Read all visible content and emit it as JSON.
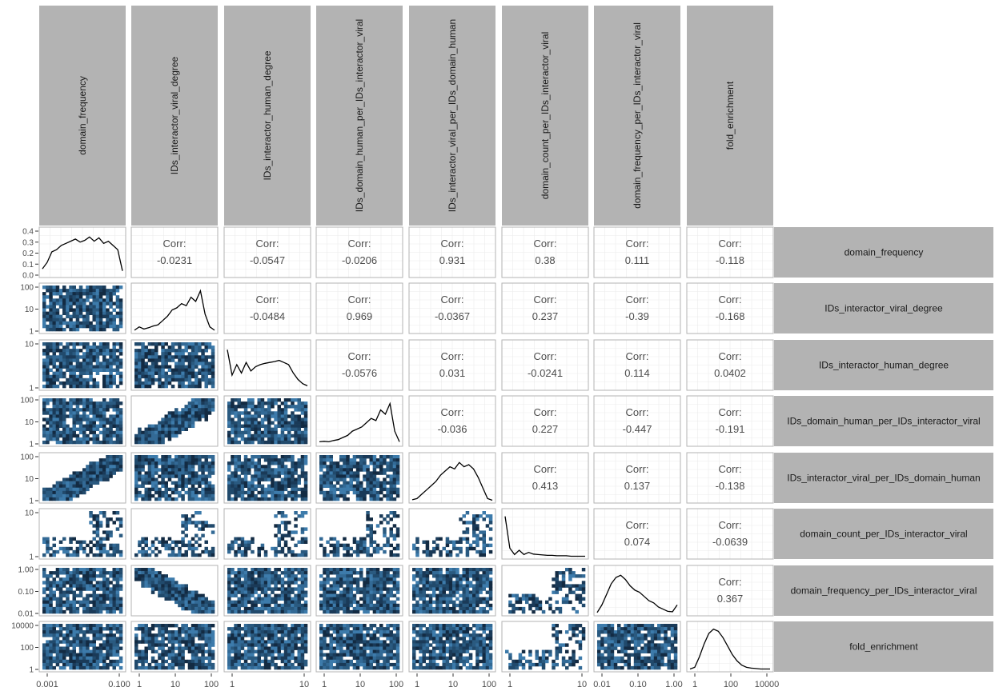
{
  "chart_data": {
    "type": "pairs-matrix",
    "variables": [
      "domain_frequency",
      "IDs_interactor_viral_degree",
      "IDs_interactor_human_degree",
      "IDs_domain_human_per_IDs_interactor_viral",
      "IDs_interactor_viral_per_IDs_domain_human",
      "domain_count_per_IDs_interactor_viral",
      "domain_frequency_per_IDs_interactor_viral",
      "fold_enrichment"
    ],
    "corr_label": "Corr:",
    "correlations": [
      {
        "row": 0,
        "col": 1,
        "value": "-0.0231"
      },
      {
        "row": 0,
        "col": 2,
        "value": "-0.0547"
      },
      {
        "row": 0,
        "col": 3,
        "value": "-0.0206"
      },
      {
        "row": 0,
        "col": 4,
        "value": "0.931"
      },
      {
        "row": 0,
        "col": 5,
        "value": "0.38"
      },
      {
        "row": 0,
        "col": 6,
        "value": "0.111"
      },
      {
        "row": 0,
        "col": 7,
        "value": "-0.118"
      },
      {
        "row": 1,
        "col": 2,
        "value": "-0.0484"
      },
      {
        "row": 1,
        "col": 3,
        "value": "0.969"
      },
      {
        "row": 1,
        "col": 4,
        "value": "-0.0367"
      },
      {
        "row": 1,
        "col": 5,
        "value": "0.237"
      },
      {
        "row": 1,
        "col": 6,
        "value": "-0.39"
      },
      {
        "row": 1,
        "col": 7,
        "value": "-0.168"
      },
      {
        "row": 2,
        "col": 3,
        "value": "-0.0576"
      },
      {
        "row": 2,
        "col": 4,
        "value": "0.031"
      },
      {
        "row": 2,
        "col": 5,
        "value": "-0.0241"
      },
      {
        "row": 2,
        "col": 6,
        "value": "0.114"
      },
      {
        "row": 2,
        "col": 7,
        "value": "0.0402"
      },
      {
        "row": 3,
        "col": 4,
        "value": "-0.036"
      },
      {
        "row": 3,
        "col": 5,
        "value": "0.227"
      },
      {
        "row": 3,
        "col": 6,
        "value": "-0.447"
      },
      {
        "row": 3,
        "col": 7,
        "value": "-0.191"
      },
      {
        "row": 4,
        "col": 5,
        "value": "0.413"
      },
      {
        "row": 4,
        "col": 6,
        "value": "0.137"
      },
      {
        "row": 4,
        "col": 7,
        "value": "-0.138"
      },
      {
        "row": 5,
        "col": 6,
        "value": "0.074"
      },
      {
        "row": 5,
        "col": 7,
        "value": "-0.0639"
      },
      {
        "row": 6,
        "col": 7,
        "value": "0.367"
      }
    ],
    "row_tick_labels": [
      [
        "0.4",
        "0.3",
        "0.2",
        "0.1",
        "0.0"
      ],
      [
        "100",
        "10",
        "1"
      ],
      [
        "10",
        "1"
      ],
      [
        "100",
        "10",
        "1"
      ],
      [
        "100",
        "10",
        "1"
      ],
      [
        "10",
        "1"
      ],
      [
        "1.00",
        "0.10",
        "0.01"
      ],
      [
        "10000",
        "100",
        "1"
      ]
    ],
    "col_tick_labels": [
      [
        "0.001",
        "0.100"
      ],
      [
        "1",
        "10",
        "100"
      ],
      [
        "1",
        "10"
      ],
      [
        "1",
        "10",
        "100"
      ],
      [
        "1",
        "10",
        "100"
      ],
      [
        "1",
        "10"
      ],
      [
        "0.01",
        "0.10",
        "1.00"
      ],
      [
        "1",
        "100",
        "10000"
      ]
    ],
    "diagonal_type": "density",
    "lower_type": "binned-2d-histogram",
    "upper_type": "correlation",
    "grid": true
  }
}
